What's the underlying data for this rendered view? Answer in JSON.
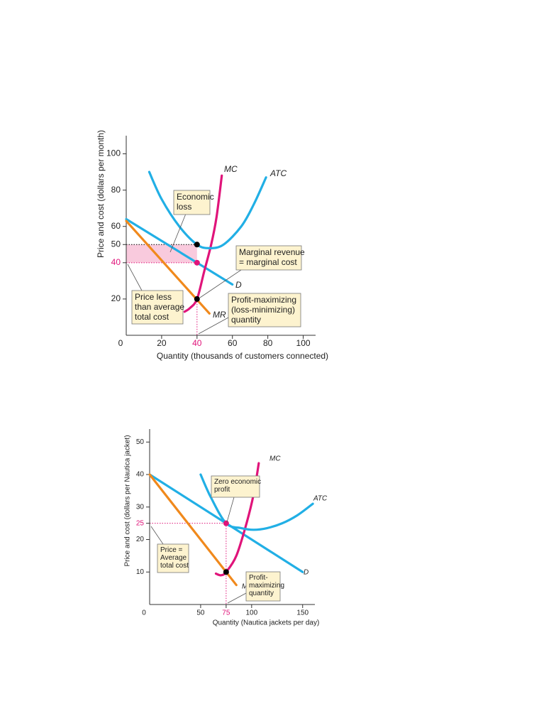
{
  "chart_data": [
    {
      "type": "line",
      "y_label": "Price and cost (dollars per month)",
      "x_label": "Quantity (thousands of customers connected)",
      "xlim": [
        0,
        107
      ],
      "ylim": [
        0,
        110
      ],
      "xticks": [
        0,
        20,
        40,
        60,
        80,
        100
      ],
      "yticks": [
        20,
        40,
        50,
        60,
        80,
        100
      ],
      "highlight_color": "#e0147a",
      "series": [
        {
          "name": "D",
          "color": "#21afe5",
          "x": [
            0,
            60
          ],
          "values": [
            64,
            28
          ]
        },
        {
          "name": "MR",
          "color": "#f0891c",
          "x": [
            0,
            47
          ],
          "values": [
            63,
            12
          ]
        },
        {
          "name": "MC",
          "color": "#e0147a",
          "x": [
            33,
            36,
            40,
            44,
            48,
            51,
            54
          ],
          "values": [
            13,
            15,
            20,
            35,
            50,
            65,
            88
          ]
        },
        {
          "name": "ATC",
          "color": "#21afe5",
          "x": [
            13,
            20,
            30,
            40,
            47,
            55,
            65,
            72,
            79
          ],
          "values": [
            90,
            75,
            60,
            50,
            48,
            50,
            60,
            72,
            87
          ]
        }
      ],
      "points": [
        {
          "x": 40,
          "y": 50,
          "color": "#000000"
        },
        {
          "x": 40,
          "y": 40,
          "color": "#e0147a"
        },
        {
          "x": 40,
          "y": 20,
          "color": "#000000"
        }
      ],
      "shaded": {
        "x": [
          0,
          40
        ],
        "y": [
          40,
          50
        ],
        "color": "#f9cadd"
      },
      "annotations": [
        {
          "lines": [
            "Economic",
            "loss"
          ]
        },
        {
          "lines": [
            "Marginal revenue",
            "= marginal cost"
          ]
        },
        {
          "lines": [
            "Price less",
            "than average",
            "total cost"
          ]
        },
        {
          "lines": [
            "Profit-maximizing",
            "(loss-minimizing)",
            "quantity"
          ]
        }
      ]
    },
    {
      "type": "line",
      "y_label": "Price and cost (dollars per Nautica jacket)",
      "x_label": "Quantity (Nautica jackets per day)",
      "xlim": [
        0,
        162
      ],
      "ylim": [
        0,
        54
      ],
      "xticks": [
        0,
        50,
        75,
        100,
        150
      ],
      "yticks": [
        10,
        20,
        25,
        30,
        40,
        50
      ],
      "highlight_color": "#e0147a",
      "series": [
        {
          "name": "D",
          "color": "#21afe5",
          "x": [
            0,
            150
          ],
          "values": [
            40,
            10
          ]
        },
        {
          "name": "MR",
          "color": "#f0891c",
          "x": [
            0,
            85
          ],
          "values": [
            40,
            6
          ]
        },
        {
          "name": "MC",
          "color": "#e0147a",
          "x": [
            65,
            70,
            75,
            85,
            95,
            102,
            107
          ],
          "values": [
            9.5,
            9,
            10,
            15,
            25,
            34,
            43.5
          ]
        },
        {
          "name": "ATC",
          "color": "#21afe5",
          "x": [
            50,
            60,
            75,
            90,
            102,
            115,
            130,
            145,
            160
          ],
          "values": [
            40,
            33,
            25,
            23.5,
            23,
            23.5,
            25,
            27.5,
            31
          ]
        }
      ],
      "points": [
        {
          "x": 75,
          "y": 25,
          "color": "#e0147a"
        },
        {
          "x": 75,
          "y": 10,
          "color": "#000000"
        }
      ],
      "annotations": [
        {
          "lines": [
            "Zero economic",
            "profit"
          ]
        },
        {
          "lines": [
            "Price =",
            "Average",
            "total cost"
          ]
        },
        {
          "lines": [
            "Profit-",
            "maximizing",
            "quantity"
          ]
        }
      ]
    }
  ]
}
